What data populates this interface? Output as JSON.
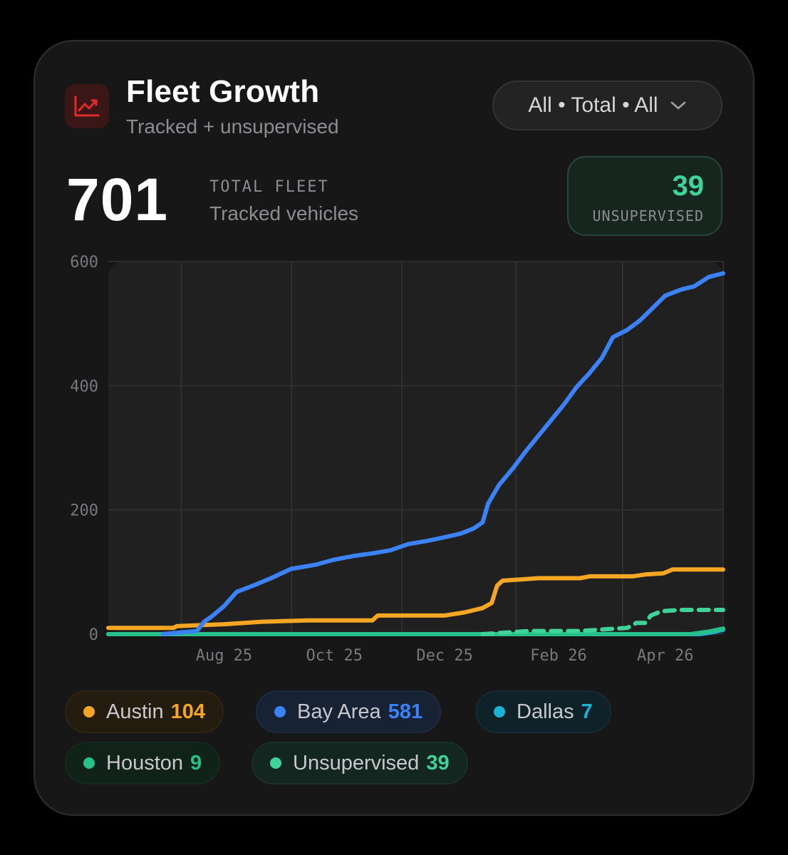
{
  "header": {
    "title": "Fleet Growth",
    "subtitle": "Tracked + unsupervised",
    "icon": "trending-up-icon",
    "filter_label": "All • Total • All"
  },
  "kpi": {
    "total_value": "701",
    "total_label": "TOTAL FLEET",
    "total_sub": "Tracked vehicles",
    "unsupervised_value": "39",
    "unsupervised_label": "UNSUPERVISED"
  },
  "legend": [
    {
      "name": "Austin",
      "value": "104",
      "color": "#f5a623"
    },
    {
      "name": "Bay Area",
      "value": "581",
      "color": "#3b82f6"
    },
    {
      "name": "Dallas",
      "value": "7",
      "color": "#1ab3d4"
    },
    {
      "name": "Houston",
      "value": "9",
      "color": "#27c08a"
    },
    {
      "name": "Unsupervised",
      "value": "39",
      "color": "#3fd39a"
    }
  ],
  "chart_data": {
    "type": "line",
    "xlabel": "",
    "ylabel": "",
    "ylim": [
      0,
      600
    ],
    "x_range": [
      "2025-06-22",
      "2026-05-28"
    ],
    "yticks": [
      0,
      200,
      400,
      600
    ],
    "xticks": [
      {
        "date": "2025-08-25",
        "label": "Aug 25"
      },
      {
        "date": "2025-10-25",
        "label": "Oct 25"
      },
      {
        "date": "2025-12-25",
        "label": "Dec 25"
      },
      {
        "date": "2026-02-26",
        "label": "Feb 26"
      },
      {
        "date": "2026-04-26",
        "label": "Apr 26"
      }
    ],
    "grid": true,
    "series": [
      {
        "name": "Austin",
        "color": "#f5a623",
        "style": "solid",
        "points": [
          [
            "2025-06-22",
            10
          ],
          [
            "2025-07-28",
            10
          ],
          [
            "2025-07-30",
            13
          ],
          [
            "2025-08-25",
            16
          ],
          [
            "2025-09-15",
            20
          ],
          [
            "2025-10-10",
            22
          ],
          [
            "2025-11-15",
            22
          ],
          [
            "2025-11-18",
            30
          ],
          [
            "2025-12-25",
            30
          ],
          [
            "2026-01-05",
            35
          ],
          [
            "2026-01-15",
            42
          ],
          [
            "2026-01-20",
            50
          ],
          [
            "2026-01-23",
            78
          ],
          [
            "2026-01-26",
            86
          ],
          [
            "2026-02-15",
            90
          ],
          [
            "2026-03-10",
            90
          ],
          [
            "2026-03-15",
            93
          ],
          [
            "2026-04-08",
            93
          ],
          [
            "2026-04-15",
            96
          ],
          [
            "2026-04-25",
            98
          ],
          [
            "2026-04-30",
            104
          ],
          [
            "2026-05-28",
            104
          ]
        ]
      },
      {
        "name": "Bay Area",
        "color": "#3b82f6",
        "style": "solid",
        "points": [
          [
            "2025-07-22",
            0
          ],
          [
            "2025-08-10",
            5
          ],
          [
            "2025-08-14",
            20
          ],
          [
            "2025-08-18",
            28
          ],
          [
            "2025-08-25",
            45
          ],
          [
            "2025-09-01",
            68
          ],
          [
            "2025-09-10",
            78
          ],
          [
            "2025-09-20",
            90
          ],
          [
            "2025-10-01",
            105
          ],
          [
            "2025-10-15",
            112
          ],
          [
            "2025-10-25",
            120
          ],
          [
            "2025-11-05",
            126
          ],
          [
            "2025-11-15",
            130
          ],
          [
            "2025-11-25",
            135
          ],
          [
            "2025-12-05",
            145
          ],
          [
            "2025-12-15",
            150
          ],
          [
            "2025-12-25",
            156
          ],
          [
            "2026-01-03",
            162
          ],
          [
            "2026-01-10",
            170
          ],
          [
            "2026-01-15",
            180
          ],
          [
            "2026-01-18",
            210
          ],
          [
            "2026-01-24",
            240
          ],
          [
            "2026-02-01",
            268
          ],
          [
            "2026-02-08",
            295
          ],
          [
            "2026-02-15",
            320
          ],
          [
            "2026-02-22",
            345
          ],
          [
            "2026-03-01",
            370
          ],
          [
            "2026-03-08",
            398
          ],
          [
            "2026-03-15",
            420
          ],
          [
            "2026-03-22",
            445
          ],
          [
            "2026-03-28",
            478
          ],
          [
            "2026-04-05",
            490
          ],
          [
            "2026-04-12",
            505
          ],
          [
            "2026-04-19",
            525
          ],
          [
            "2026-04-26",
            545
          ],
          [
            "2026-05-05",
            555
          ],
          [
            "2026-05-12",
            560
          ],
          [
            "2026-05-20",
            575
          ],
          [
            "2026-05-28",
            581
          ]
        ]
      },
      {
        "name": "Dallas",
        "color": "#1ab3d4",
        "style": "solid",
        "points": [
          [
            "2025-06-22",
            0
          ],
          [
            "2026-05-15",
            0
          ],
          [
            "2026-05-22",
            3
          ],
          [
            "2026-05-28",
            7
          ]
        ]
      },
      {
        "name": "Houston",
        "color": "#27c08a",
        "style": "solid",
        "points": [
          [
            "2025-06-22",
            0
          ],
          [
            "2026-05-10",
            0
          ],
          [
            "2026-05-20",
            4
          ],
          [
            "2026-05-28",
            9
          ]
        ]
      },
      {
        "name": "Unsupervised",
        "color": "#3fd39a",
        "style": "dashed",
        "points": [
          [
            "2026-01-15",
            0
          ],
          [
            "2026-01-25",
            2
          ],
          [
            "2026-02-10",
            5
          ],
          [
            "2026-03-10",
            5
          ],
          [
            "2026-03-25",
            8
          ],
          [
            "2026-04-05",
            10
          ],
          [
            "2026-04-10",
            18
          ],
          [
            "2026-04-15",
            18
          ],
          [
            "2026-04-18",
            30
          ],
          [
            "2026-04-24",
            37
          ],
          [
            "2026-05-05",
            39
          ],
          [
            "2026-05-28",
            39
          ]
        ]
      }
    ]
  }
}
